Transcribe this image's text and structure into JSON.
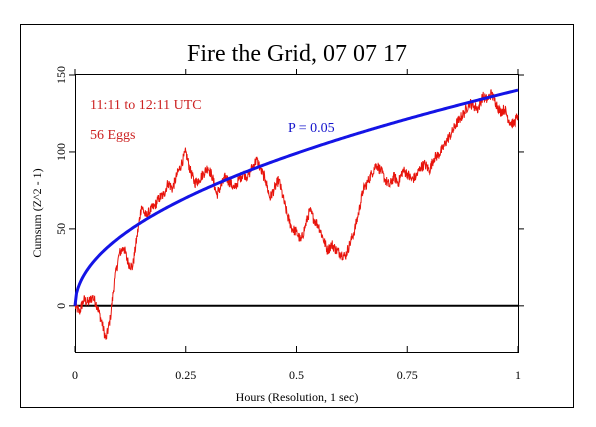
{
  "chart_data": {
    "type": "line",
    "title": "Fire the Grid, 07 07 17",
    "xlabel": "Hours (Resolution, 1 sec)",
    "ylabel": "Cumsum (Z^2 - 1)",
    "xlim": [
      0,
      1
    ],
    "ylim": [
      -30,
      150
    ],
    "xticks": [
      0,
      0.25,
      0.5,
      0.75,
      1
    ],
    "xtick_labels": [
      "0",
      "0.25",
      "0.5",
      "0.75",
      "1"
    ],
    "yticks": [
      0,
      50,
      100,
      150
    ],
    "ytick_labels": [
      "0",
      "50",
      "100",
      "150"
    ],
    "grid": false,
    "annotations": {
      "time_range": "11:11 to 12:11 UTC",
      "eggs": "56 Eggs",
      "p_label": "P = 0.05"
    },
    "colors": {
      "cumsum": "#e8140c",
      "envelope": "#1414e6",
      "baseline": "#000000",
      "annotation_red": "#cc2222",
      "annotation_blue": "#1414cc"
    },
    "series": [
      {
        "name": "",
        "role": "cumsum",
        "x": [
          0,
          0.01,
          0.02,
          0.03,
          0.04,
          0.05,
          0.06,
          0.07,
          0.08,
          0.09,
          0.1,
          0.11,
          0.12,
          0.13,
          0.14,
          0.15,
          0.16,
          0.17,
          0.18,
          0.19,
          0.2,
          0.21,
          0.22,
          0.23,
          0.24,
          0.25,
          0.26,
          0.27,
          0.28,
          0.29,
          0.3,
          0.31,
          0.32,
          0.33,
          0.34,
          0.35,
          0.36,
          0.37,
          0.38,
          0.39,
          0.4,
          0.41,
          0.42,
          0.43,
          0.44,
          0.45,
          0.46,
          0.47,
          0.48,
          0.49,
          0.5,
          0.51,
          0.52,
          0.53,
          0.54,
          0.55,
          0.56,
          0.57,
          0.58,
          0.59,
          0.6,
          0.61,
          0.62,
          0.63,
          0.64,
          0.65,
          0.66,
          0.67,
          0.68,
          0.69,
          0.7,
          0.71,
          0.72,
          0.73,
          0.74,
          0.75,
          0.76,
          0.77,
          0.78,
          0.79,
          0.8,
          0.81,
          0.82,
          0.83,
          0.84,
          0.85,
          0.86,
          0.87,
          0.88,
          0.89,
          0.9,
          0.91,
          0.92,
          0.93,
          0.94,
          0.95,
          0.96,
          0.97,
          0.98,
          0.99,
          1
        ],
        "y": [
          0,
          -4,
          4,
          2,
          6,
          0,
          -10,
          -22,
          -8,
          18,
          34,
          38,
          28,
          25,
          45,
          65,
          58,
          62,
          65,
          70,
          72,
          80,
          76,
          85,
          92,
          100,
          88,
          80,
          82,
          86,
          90,
          84,
          72,
          78,
          84,
          80,
          76,
          82,
          86,
          84,
          90,
          95,
          88,
          82,
          70,
          76,
          82,
          70,
          58,
          50,
          48,
          42,
          52,
          62,
          56,
          52,
          44,
          36,
          40,
          36,
          34,
          32,
          40,
          48,
          60,
          75,
          80,
          86,
          92,
          88,
          82,
          78,
          84,
          80,
          88,
          86,
          82,
          84,
          90,
          92,
          88,
          96,
          98,
          102,
          108,
          112,
          118,
          122,
          126,
          132,
          130,
          128,
          136,
          134,
          138,
          132,
          126,
          128,
          120,
          118,
          124
        ]
      },
      {
        "name": "P = 0.05",
        "role": "envelope",
        "x": [
          0,
          0.01,
          0.025,
          0.05,
          0.075,
          0.1,
          0.15,
          0.2,
          0.25,
          0.3,
          0.35,
          0.4,
          0.45,
          0.5,
          0.55,
          0.6,
          0.65,
          0.7,
          0.75,
          0.8,
          0.85,
          0.9,
          0.95,
          1
        ],
        "y": [
          0,
          14,
          22.2,
          31.4,
          38.4,
          44.3,
          54.3,
          62.7,
          70.1,
          76.8,
          82.9,
          88.7,
          94,
          99.2,
          104,
          108.6,
          113.1,
          117.3,
          121.4,
          125.4,
          129.2,
          133,
          136.6,
          140.2
        ]
      },
      {
        "name": "",
        "role": "baseline",
        "x": [
          0,
          1
        ],
        "y": [
          0,
          0
        ]
      }
    ]
  }
}
